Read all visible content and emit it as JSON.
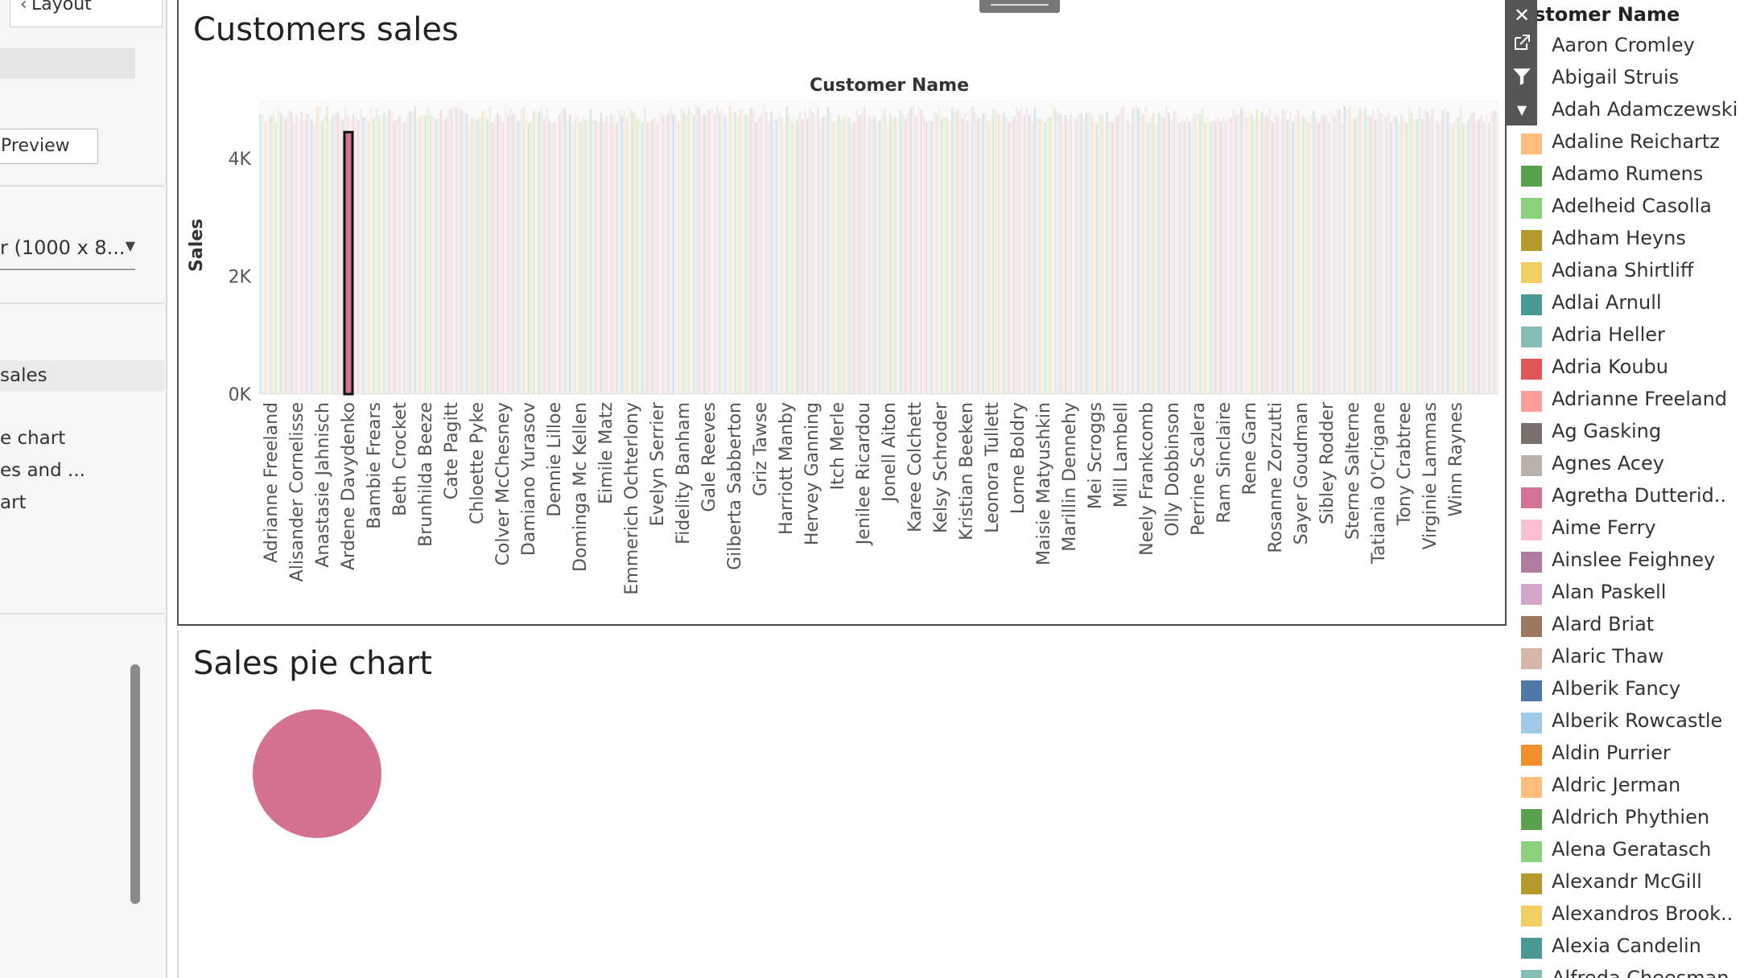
{
  "left_panel": {
    "tab_label": "Layout",
    "preview_button": "Preview",
    "size_value": "r (1000 x 8...",
    "items": [
      "sales",
      "e chart",
      "es and ...",
      "art"
    ]
  },
  "dashboard": {
    "top_sheet_title": "Customers sales",
    "bottom_sheet_title": "Sales pie chart"
  },
  "colors": {
    "accent_selected_bar": "#d3718f",
    "pie_color": "#d3718f",
    "toolbar_bg": "#555555"
  },
  "toolbar": {
    "close_icon": "close-icon",
    "popout_icon": "external-link-icon",
    "filter_icon": "filter-icon",
    "menu_icon": "caret-down-icon"
  },
  "legend": {
    "title": "stomer Name",
    "items": [
      {
        "label": "Aaron Cromley",
        "color": ""
      },
      {
        "label": "Abigail Struis",
        "color": ""
      },
      {
        "label": "Adah Adamczewski",
        "color": ""
      },
      {
        "label": "Adaline Reichartz",
        "color": "#ffbe7d"
      },
      {
        "label": "Adamo Rumens",
        "color": "#59a14f"
      },
      {
        "label": "Adelheid Casolla",
        "color": "#8cd17d"
      },
      {
        "label": "Adham Heyns",
        "color": "#b6992d"
      },
      {
        "label": "Adiana Shirtliff",
        "color": "#f1ce63"
      },
      {
        "label": "Adlai Arnull",
        "color": "#499894"
      },
      {
        "label": "Adria Heller",
        "color": "#86bcb6"
      },
      {
        "label": "Adria Koubu",
        "color": "#e15759"
      },
      {
        "label": "Adrianne Freeland",
        "color": "#ff9d9a"
      },
      {
        "label": "Ag Gasking",
        "color": "#79706e"
      },
      {
        "label": "Agnes Acey",
        "color": "#bab0ac"
      },
      {
        "label": "Agretha Dutterid..",
        "color": "#d37295"
      },
      {
        "label": "Aime Ferry",
        "color": "#fabfd2"
      },
      {
        "label": "Ainslee Feighney",
        "color": "#b07aa1"
      },
      {
        "label": "Alan Paskell",
        "color": "#d4a6c8"
      },
      {
        "label": "Alard Briat",
        "color": "#9d7660"
      },
      {
        "label": "Alaric Thaw",
        "color": "#d7b5a6"
      },
      {
        "label": "Alberik Fancy",
        "color": "#4e79a7"
      },
      {
        "label": "Alberik Rowcastle",
        "color": "#a0cbe8"
      },
      {
        "label": "Aldin Purrier",
        "color": "#f28e2b"
      },
      {
        "label": "Aldric Jerman",
        "color": "#ffbe7d"
      },
      {
        "label": "Aldrich Phythien",
        "color": "#59a14f"
      },
      {
        "label": "Alena Geratasch",
        "color": "#8cd17d"
      },
      {
        "label": "Alexandr McGill",
        "color": "#b6992d"
      },
      {
        "label": "Alexandros Brook..",
        "color": "#f1ce63"
      },
      {
        "label": "Alexia Candelin",
        "color": "#499894"
      },
      {
        "label": "Alfreda Cheesman",
        "color": "#86bcb6"
      }
    ]
  },
  "chart_data": [
    {
      "type": "bar",
      "title": "Customers sales",
      "xlabel": "Customer Name",
      "ylabel": "Sales",
      "ylim": [
        0,
        5000
      ],
      "yticks": [
        "4K",
        "2K",
        "0K"
      ],
      "ytick_values": [
        4000,
        2000,
        0
      ],
      "categories": [
        "Adrianne Freeland",
        "Alisander Cornelisse",
        "Anastasie Jahnisch",
        "Ardene Davydenko",
        "Bambie Frears",
        "Beth Crocket",
        "Brunhilda Beeze",
        "Cate Pagitt",
        "Chloette Pyke",
        "Colver McChesney",
        "Damiano Yurasov",
        "Dennie Lilloe",
        "Dominga Mc Kellen",
        "Eimile Matz",
        "Emmerich Ochterlony",
        "Evelyn Serrier",
        "Fidelity Banham",
        "Gale Reeves",
        "Gilberta Sabberton",
        "Griz Tawse",
        "Harriott Manby",
        "Hervey Ganning",
        "Itch Merle",
        "Jenilee Ricardou",
        "Jonell Aiton",
        "Karee Colchett",
        "Kelsy Schroder",
        "Kristian Beeken",
        "Leonora Tullett",
        "Lorne Boldry",
        "Maisie Matyushkin",
        "Marillin Dennehy",
        "Mei Scroggs",
        "Mill Lambell",
        "Neely Frankcomb",
        "Olly Dobbinson",
        "Perrine Scalera",
        "Ram Sinclaire",
        "Rene Garn",
        "Rosanne Zorzutti",
        "Sayer Goudman",
        "Sibley Rodder",
        "Sterne Salterne",
        "Tatiania O'Crigane",
        "Tony Crabtree",
        "Virginie Lammas",
        "Winn Raynes"
      ],
      "highlighted_category": "Ardene Davydenko",
      "highlighted_value": 4450,
      "typical_value": 4750
    },
    {
      "type": "pie",
      "title": "Sales pie chart",
      "slices": [
        {
          "label": "",
          "value": 1,
          "color": "#d3718f"
        }
      ]
    }
  ]
}
